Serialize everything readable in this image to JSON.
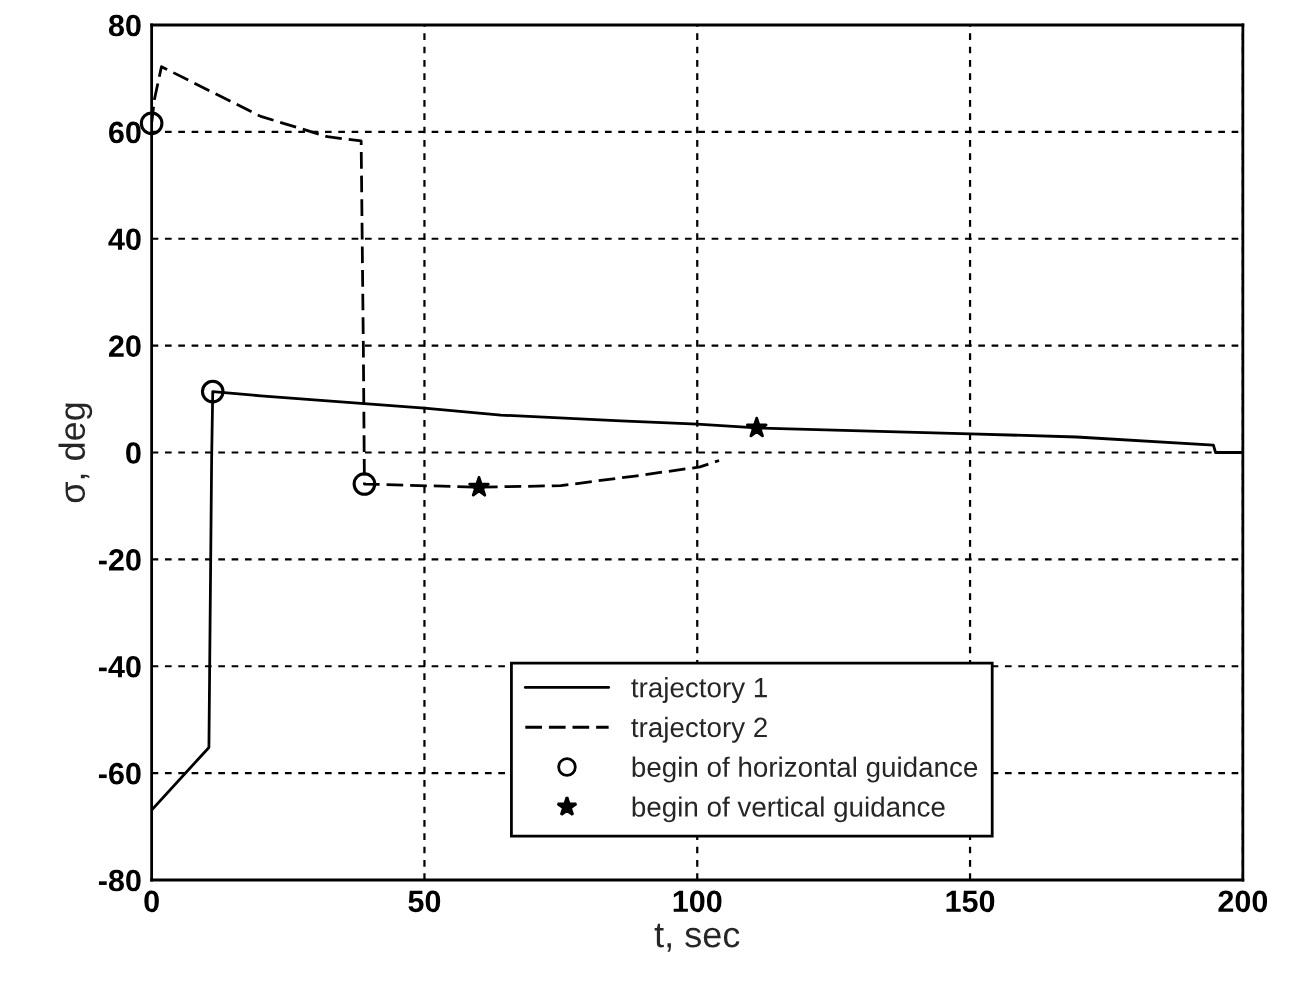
{
  "chart_data": {
    "type": "line",
    "xlabel": "t, sec",
    "ylabel": "σ, deg",
    "xlim": [
      0,
      200
    ],
    "xticks": [
      0,
      50,
      100,
      150,
      200
    ],
    "ylim": [
      -80,
      80
    ],
    "yticks": [
      -80,
      -60,
      -40,
      -20,
      0,
      20,
      40,
      60,
      80
    ],
    "grid": true,
    "legend": "bottom",
    "series": [
      {
        "name": "trajectory 1",
        "line_style": "solid",
        "marker": "none",
        "color": "#000000",
        "x": [
          0,
          10.5,
          11,
          11.2,
          20,
          50,
          64,
          86,
          100,
          110.9,
          150,
          169.5,
          194.6,
          195,
          200
        ],
        "values": [
          -66.9,
          -55.2,
          -1,
          11.4,
          10.6,
          8.3,
          7.0,
          5.9,
          5.3,
          4.6,
          3.5,
          2.9,
          1.4,
          0,
          0
        ]
      },
      {
        "name": "trajectory 2",
        "line_style": "dashed",
        "marker": "none",
        "color": "#000000",
        "x": [
          0,
          0.5,
          1.8,
          20,
          32.2,
          38.4,
          38.8,
          39,
          60,
          75,
          88.6,
          100.5,
          104
        ],
        "values": [
          61.6,
          66,
          72.2,
          62.9,
          59.1,
          58.3,
          20,
          -5.9,
          -6.5,
          -6.2,
          -4.4,
          -2.7,
          -1.5
        ]
      },
      {
        "name": "begin of horizontal guidance",
        "type": "scatter",
        "marker": "circle",
        "color": "#000000",
        "x": [
          0,
          11.2,
          39
        ],
        "values": [
          61.6,
          11.4,
          -5.9
        ]
      },
      {
        "name": "begin of vertical guidance",
        "type": "scatter",
        "marker": "star",
        "color": "#000000",
        "x": [
          60,
          110.9
        ],
        "values": [
          -6.5,
          4.6
        ]
      }
    ]
  }
}
